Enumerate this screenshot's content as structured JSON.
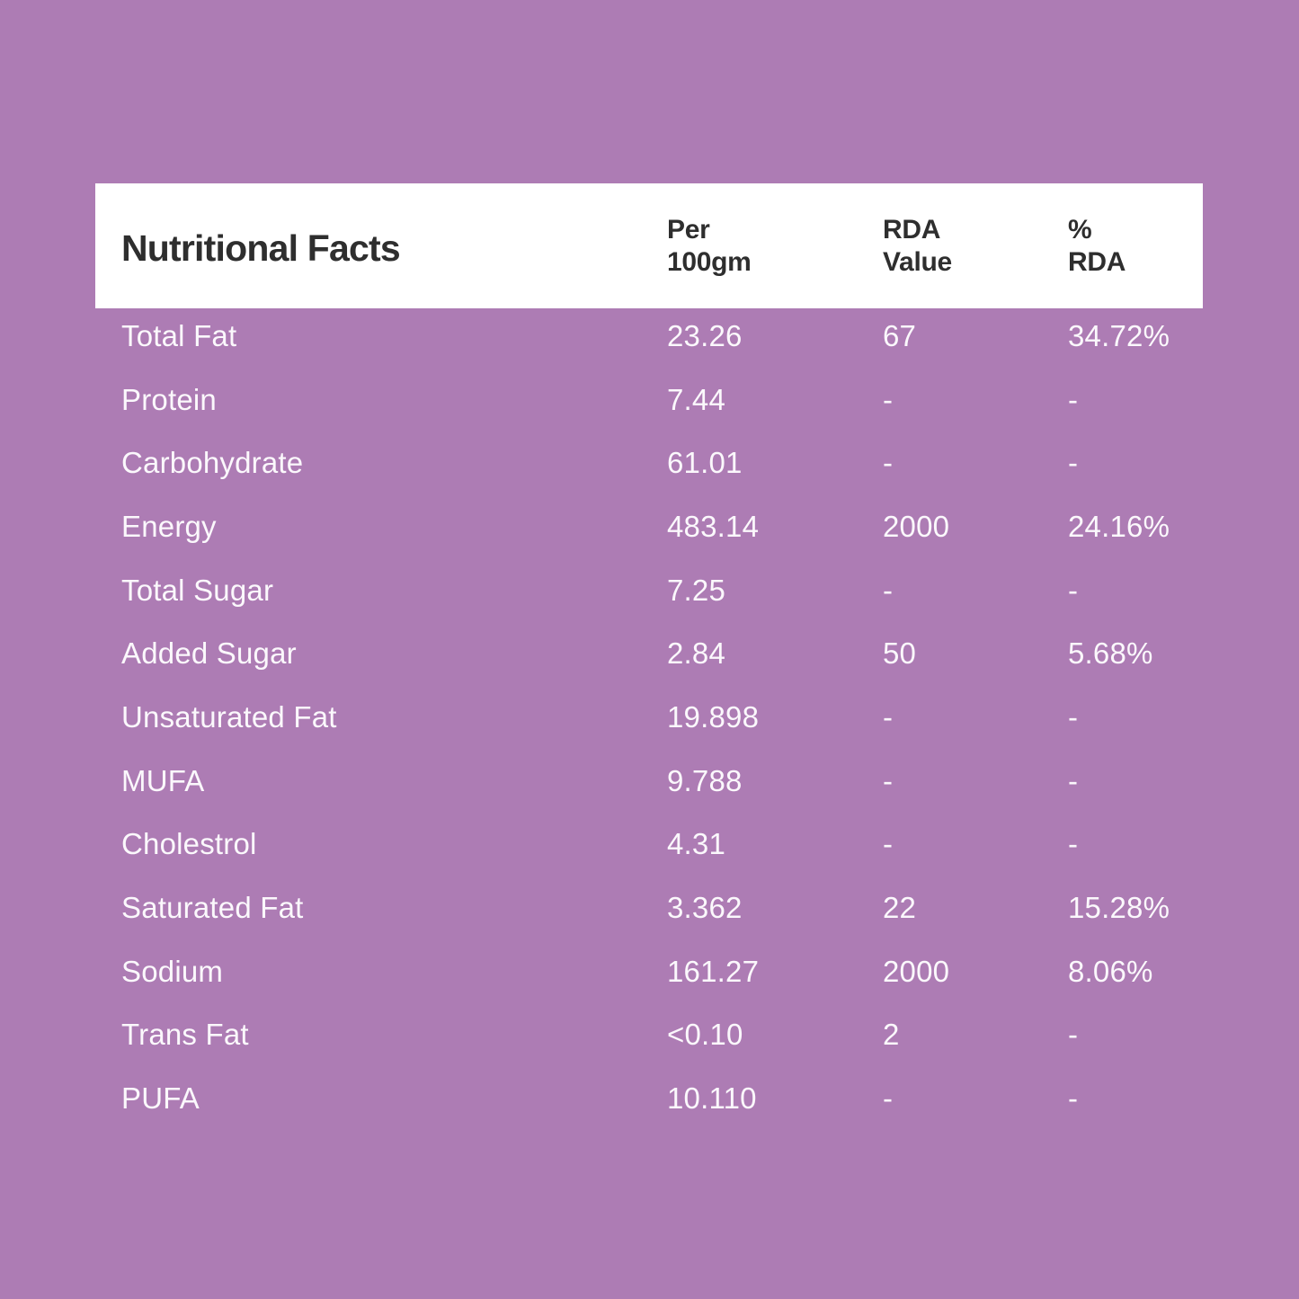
{
  "colors": {
    "background": "#ad7cb4",
    "header_panel": "#ffffff",
    "header_text": "#2e2e2e",
    "row_text": "#fbf8fc"
  },
  "table": {
    "title": "Nutritional Facts",
    "columns": [
      {
        "line1": "Per",
        "line2": "100gm"
      },
      {
        "line1": "RDA",
        "line2": "Value"
      },
      {
        "line1": "%",
        "line2": "RDA"
      }
    ],
    "rows": [
      {
        "label": "Total Fat",
        "per_100gm": "23.26",
        "rda_value": "67",
        "rda_percent": "34.72%"
      },
      {
        "label": "Protein",
        "per_100gm": "7.44",
        "rda_value": "-",
        "rda_percent": "-"
      },
      {
        "label": "Carbohydrate",
        "per_100gm": "61.01",
        "rda_value": "-",
        "rda_percent": "-"
      },
      {
        "label": "Energy",
        "per_100gm": "483.14",
        "rda_value": "2000",
        "rda_percent": "24.16%"
      },
      {
        "label": "Total Sugar",
        "per_100gm": "7.25",
        "rda_value": "-",
        "rda_percent": "-"
      },
      {
        "label": "Added Sugar",
        "per_100gm": "2.84",
        "rda_value": "50",
        "rda_percent": "5.68%"
      },
      {
        "label": "Unsaturated Fat",
        "per_100gm": "19.898",
        "rda_value": "-",
        "rda_percent": "-"
      },
      {
        "label": "MUFA",
        "per_100gm": "9.788",
        "rda_value": "-",
        "rda_percent": "-"
      },
      {
        "label": "Cholestrol",
        "per_100gm": "4.31",
        "rda_value": "-",
        "rda_percent": "-"
      },
      {
        "label": "Saturated Fat",
        "per_100gm": "3.362",
        "rda_value": "22",
        "rda_percent": "15.28%"
      },
      {
        "label": "Sodium",
        "per_100gm": "161.27",
        "rda_value": "2000",
        "rda_percent": "8.06%"
      },
      {
        "label": "Trans Fat",
        "per_100gm": "<0.10",
        "rda_value": "2",
        "rda_percent": "-"
      },
      {
        "label": "PUFA",
        "per_100gm": "10.110",
        "rda_value": "-",
        "rda_percent": "-"
      }
    ]
  }
}
